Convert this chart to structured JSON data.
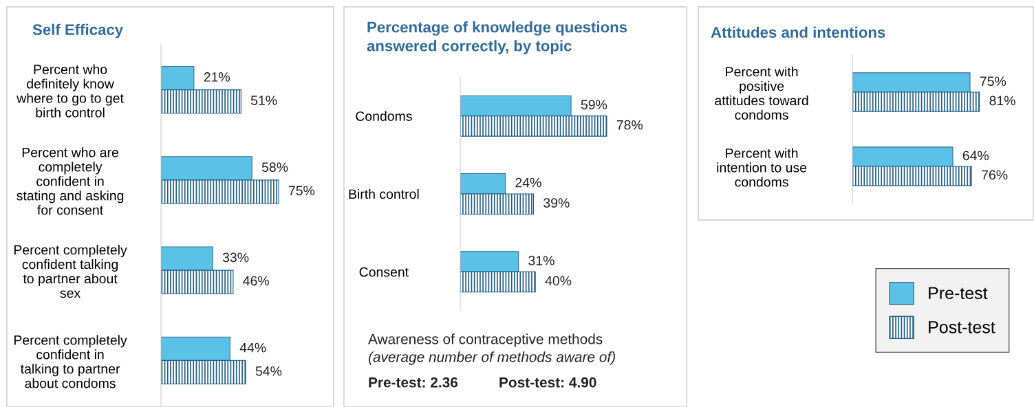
{
  "chart_data": [
    {
      "type": "bar",
      "orientation": "horizontal",
      "title": "Self Efficacy",
      "categories": [
        "Percent who definitely know where to go to get birth control",
        "Percent who are completely confident in stating and asking for consent",
        "Percent completely confident talking to partner about sex",
        "Percent completely confident in talking to partner about condoms"
      ],
      "series": [
        {
          "color": "#5bc2e7",
          "values": [
            21,
            58,
            33,
            44
          ],
          "value_labels": [
            "21%",
            "58%",
            "33%",
            "44%"
          ]
        },
        {
          "color": "#1f5f8b",
          "values": [
            51,
            75,
            46,
            54
          ],
          "value_labels": [
            "51%",
            "75%",
            "46%",
            "54%"
          ]
        }
      ]
    },
    {
      "type": "bar",
      "orientation": "horizontal",
      "title": "Percentage of knowledge questions answered correctly, by topic",
      "categories": [
        "Condoms",
        "Birth control",
        "Consent"
      ],
      "series": [
        {
          "color": "#5bc2e7",
          "values": [
            59,
            24,
            31
          ],
          "value_labels": [
            "59%",
            "24%",
            "31%"
          ]
        },
        {
          "color": "#1f5f8b",
          "values": [
            78,
            39,
            40
          ],
          "value_labels": [
            "78%",
            "39%",
            "40%"
          ]
        }
      ],
      "annotations": [
        "Awareness of contraceptive methods",
        "(average number of methods aware of)",
        "Pre-test: 2.36",
        "Post-test: 4.90"
      ]
    },
    {
      "type": "bar",
      "orientation": "horizontal",
      "title": "Attitudes and intentions",
      "legend": "bottom",
      "categories": [
        "Percent with positive attitudes toward condoms",
        "Percent with intention to use condoms"
      ],
      "series": [
        {
          "name": "Pre-test",
          "color": "#5bc2e7",
          "values": [
            75,
            64
          ],
          "value_labels": [
            "75%",
            "64%"
          ]
        },
        {
          "name": "Post-test",
          "color": "#1f5f8b",
          "values": [
            81,
            76
          ],
          "value_labels": [
            "81%",
            "76%"
          ]
        }
      ]
    }
  ]
}
